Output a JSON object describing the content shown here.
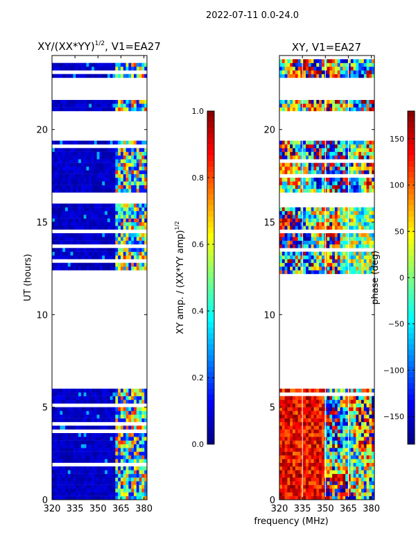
{
  "figure": {
    "suptitle": "2022-07-11 0.0-24.0",
    "xlabel": "frequency (MHz)"
  },
  "colors": {
    "jet": [
      "#00007f",
      "#0000ff",
      "#007fff",
      "#00ffff",
      "#7fff7f",
      "#ffff00",
      "#ff7f00",
      "#ff0000",
      "#7f0000"
    ],
    "axes": "#000000",
    "grid_line": "#ffffff"
  },
  "chart_data": [
    {
      "type": "heatmap",
      "title_main": "XY/(XX*YY)",
      "title_sup": "1/2",
      "title_tail": ", V1=EA27",
      "xlabel": "frequency (MHz)",
      "ylabel": "UT (hours)",
      "xlim": [
        320,
        382
      ],
      "ylim": [
        0,
        24
      ],
      "xticks": [
        320,
        335,
        350,
        365,
        380
      ],
      "yticks": [
        0,
        5,
        10,
        15,
        20
      ],
      "colorbar": {
        "label_main": "XY amp. / (XX*YY amp)",
        "label_sup": "1/2",
        "range": [
          0.0,
          1.0
        ],
        "ticks": [
          "0.0",
          "0.2",
          "0.4",
          "0.6",
          "0.8",
          "1.0"
        ]
      },
      "data_intervals_hours": [
        [
          0.0,
          6.0
        ],
        [
          12.2,
          15.95
        ],
        [
          16.5,
          19.3
        ],
        [
          19.9,
          20.0
        ],
        [
          20.9,
          21.6
        ],
        [
          22.7,
          23.85
        ]
      ],
      "bright_band_MHz": [
        361,
        382
      ],
      "dominant_value": 0.05,
      "band_value_range": [
        0.3,
        0.9
      ]
    },
    {
      "type": "heatmap",
      "title_main": "XY, V1=EA27",
      "xlabel": "frequency (MHz)",
      "xlim": [
        320,
        382
      ],
      "ylim": [
        0,
        24
      ],
      "xticks": [
        320,
        335,
        350,
        365,
        380
      ],
      "yticks": [
        0,
        5,
        10,
        15,
        20
      ],
      "colorbar": {
        "label": "phase (deg)",
        "range": [
          -180,
          180
        ],
        "ticks": [
          "150",
          "100",
          "50",
          "0",
          "−50",
          "−100",
          "−150"
        ]
      },
      "data_intervals_hours": [
        [
          0.0,
          6.0
        ],
        [
          12.2,
          15.95
        ],
        [
          16.5,
          19.3
        ],
        [
          19.9,
          20.0
        ],
        [
          20.9,
          21.6
        ],
        [
          22.7,
          23.85
        ]
      ],
      "gridline_MHz": [
        335,
        350,
        365
      ],
      "value_range_deg": [
        -180,
        180
      ]
    }
  ]
}
